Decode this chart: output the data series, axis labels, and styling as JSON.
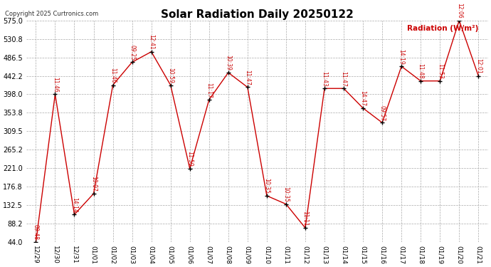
{
  "title": "Solar Radiation Daily 20250122",
  "copyright": "Copyright 2025 Curtronics.com",
  "legend_label": "Radiation (W/m²)",
  "dates": [
    "12/29",
    "12/30",
    "12/31",
    "01/01",
    "01/02",
    "01/03",
    "01/04",
    "01/05",
    "01/06",
    "01/07",
    "01/08",
    "01/09",
    "01/10",
    "01/11",
    "01/12",
    "01/13",
    "01/14",
    "01/15",
    "01/16",
    "01/17",
    "01/18",
    "01/19",
    "01/20",
    "01/21"
  ],
  "values": [
    44.0,
    398.0,
    110.0,
    160.0,
    420.0,
    475.0,
    500.0,
    420.0,
    220.0,
    385.0,
    450.0,
    415.0,
    155.0,
    135.0,
    78.0,
    412.0,
    412.0,
    365.0,
    330.0,
    465.0,
    430.0,
    430.0,
    575.0,
    442.0
  ],
  "annotations": [
    "09:48",
    "11:46",
    "14:14",
    "10:07",
    "11:46",
    "09:25",
    "12:41",
    "10:59",
    "11:59",
    "11:17",
    "10:39",
    "11:47",
    "10:35",
    "10:35",
    "11:11",
    "11:43",
    "11:47",
    "14:47",
    "09:57",
    "14:19",
    "11:48",
    "11:53",
    "12:06",
    "12:01"
  ],
  "line_color": "#cc0000",
  "marker_color": "#000000",
  "annotation_color": "#cc0000",
  "title_color": "#000000",
  "legend_color": "#cc0000",
  "bg_color": "#ffffff",
  "grid_color": "#aaaaaa",
  "ylim": [
    44.0,
    575.0
  ],
  "yticks": [
    44.0,
    88.2,
    132.5,
    176.8,
    221.0,
    265.2,
    309.5,
    353.8,
    398.0,
    442.2,
    486.5,
    530.8,
    575.0
  ],
  "figwidth": 6.9,
  "figheight": 3.75,
  "dpi": 100
}
